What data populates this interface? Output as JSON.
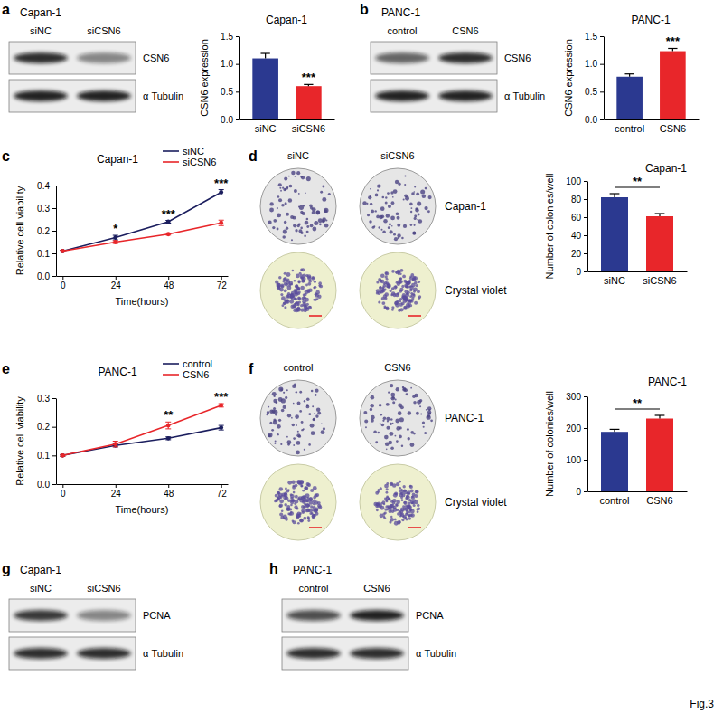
{
  "panel_letters": [
    "a",
    "b",
    "c",
    "d",
    "e",
    "f",
    "g",
    "h"
  ],
  "figure_label": "Fig.3",
  "blots": [
    {
      "title": "Capan-1",
      "lanes": [
        "siNC",
        "siCSN6"
      ],
      "rows": [
        {
          "label": "CSN6",
          "intensity": [
            0.85,
            0.45
          ]
        },
        {
          "label": "α Tubulin",
          "intensity": [
            0.9,
            0.9
          ]
        }
      ]
    },
    {
      "title": "PANC-1",
      "lanes": [
        "control",
        "CSN6"
      ],
      "rows": [
        {
          "label": "CSN6",
          "intensity": [
            0.6,
            0.85
          ]
        },
        {
          "label": "α Tubulin",
          "intensity": [
            0.9,
            0.9
          ]
        }
      ]
    },
    {
      "title": "Capan-1",
      "lanes": [
        "siNC",
        "siCSN6"
      ],
      "rows": [
        {
          "label": "PCNA",
          "intensity": [
            0.8,
            0.45
          ]
        },
        {
          "label": "α Tubulin",
          "intensity": [
            0.85,
            0.85
          ]
        }
      ]
    },
    {
      "title": "PANC-1",
      "lanes": [
        "control",
        "CSN6"
      ],
      "rows": [
        {
          "label": "PCNA",
          "intensity": [
            0.7,
            0.9
          ]
        },
        {
          "label": "α Tubulin",
          "intensity": [
            0.85,
            0.85
          ]
        }
      ]
    }
  ],
  "colony_images": [
    {
      "columns": [
        "siNC",
        "siCSN6"
      ],
      "rows": [
        "Capan-1",
        "Crystal violet"
      ]
    },
    {
      "columns": [
        "control",
        "CSN6"
      ],
      "rows": [
        "PANC-1",
        "Crystal violet"
      ]
    }
  ],
  "chart_data": [
    {
      "type": "bar",
      "title": "Capan-1",
      "y_label": "CSN6 expression",
      "categories": [
        "siNC",
        "siCSN6"
      ],
      "values": [
        1.1,
        0.6
      ],
      "errors": [
        0.09,
        0.03
      ],
      "colors": [
        "#2b3990",
        "#e8262a"
      ],
      "ylim": [
        0,
        1.5
      ],
      "yticks": [
        {
          "value": 0,
          "label": "0.0"
        },
        {
          "value": 0.5,
          "label": "0.5"
        },
        {
          "value": 1,
          "label": "1.0"
        },
        {
          "value": 1.5,
          "label": "1.5"
        }
      ],
      "annotations": [
        {
          "text": "***",
          "x": "siCSN6"
        }
      ]
    },
    {
      "type": "bar",
      "title": "PANC-1",
      "y_label": "CSN6 expression",
      "categories": [
        "control",
        "CSN6"
      ],
      "values": [
        0.77,
        1.23
      ],
      "errors": [
        0.05,
        0.05
      ],
      "colors": [
        "#2b3990",
        "#e8262a"
      ],
      "ylim": [
        0,
        1.5
      ],
      "yticks": [
        {
          "value": 0,
          "label": "0.0"
        },
        {
          "value": 0.5,
          "label": "0.5"
        },
        {
          "value": 1,
          "label": "1.0"
        },
        {
          "value": 1.5,
          "label": "1.5"
        }
      ],
      "annotations": [
        {
          "text": "***",
          "x": "CSN6"
        }
      ]
    },
    {
      "type": "line",
      "title": "Capan-1",
      "x_label": "Time(hours)",
      "y_label": "Relative cell viability",
      "x": [
        0,
        24,
        48,
        72
      ],
      "series": [
        {
          "name": "siNC",
          "color": "#1b1e5e",
          "marker": "circle",
          "values": [
            0.11,
            0.17,
            0.24,
            0.37
          ],
          "errors": [
            0.004,
            0.01,
            0.006,
            0.012
          ]
        },
        {
          "name": "siCSN6",
          "color": "#e8262a",
          "marker": "circle",
          "values": [
            0.11,
            0.15,
            0.185,
            0.235
          ],
          "errors": [
            0.004,
            0.006,
            0.004,
            0.012
          ]
        }
      ],
      "xlim": [
        -3,
        75
      ],
      "xticks": [
        0,
        24,
        48,
        72
      ],
      "ylim": [
        0,
        0.4
      ],
      "yticks": [
        {
          "value": 0,
          "label": "0.0"
        },
        {
          "value": 0.1,
          "label": "0.1"
        },
        {
          "value": 0.2,
          "label": "0.2"
        },
        {
          "value": 0.3,
          "label": "0.3"
        },
        {
          "value": 0.4,
          "label": "0.4"
        }
      ],
      "legend": "upper right",
      "annotations": [
        {
          "text": "*",
          "x": 24
        },
        {
          "text": "***",
          "x": 48
        },
        {
          "text": "***",
          "x": 72
        }
      ]
    },
    {
      "type": "bar",
      "title": "Capan-1",
      "y_label": "Number of colonies/well",
      "categories": [
        "siNC",
        "siCSN6"
      ],
      "values": [
        82,
        61
      ],
      "errors": [
        4,
        3
      ],
      "colors": [
        "#2b3990",
        "#e8262a"
      ],
      "ylim": [
        0,
        100
      ],
      "yticks": [
        0,
        20,
        40,
        60,
        80,
        100
      ],
      "annotations": [
        {
          "text": "**",
          "x": [
            "siNC",
            "siCSN6"
          ]
        }
      ]
    },
    {
      "type": "line",
      "title": "PANC-1",
      "x_label": "Time(hours)",
      "y_label": "Relative cell viability",
      "x": [
        0,
        24,
        48,
        72
      ],
      "series": [
        {
          "name": "control",
          "color": "#1b1e5e",
          "marker": "circle",
          "values": [
            0.1,
            0.135,
            0.16,
            0.197
          ],
          "errors": [
            0.003,
            0.005,
            0.005,
            0.008
          ]
        },
        {
          "name": "CSN6",
          "color": "#e8262a",
          "marker": "circle",
          "values": [
            0.1,
            0.14,
            0.205,
            0.275
          ],
          "errors": [
            0.003,
            0.01,
            0.012,
            0.006
          ]
        }
      ],
      "xlim": [
        -3,
        75
      ],
      "xticks": [
        0,
        24,
        48,
        72
      ],
      "ylim": [
        0,
        0.3
      ],
      "yticks": [
        {
          "value": 0,
          "label": "0.0"
        },
        {
          "value": 0.1,
          "label": "0.1"
        },
        {
          "value": 0.2,
          "label": "0.2"
        },
        {
          "value": 0.3,
          "label": "0.3"
        }
      ],
      "legend": "upper right",
      "annotations": [
        {
          "text": "**",
          "x": 48
        },
        {
          "text": "***",
          "x": 72
        }
      ]
    },
    {
      "type": "bar",
      "title": "PANC-1",
      "y_label": "Number of colonies/well",
      "categories": [
        "control",
        "CSN6"
      ],
      "values": [
        188,
        230
      ],
      "errors": [
        8,
        10
      ],
      "colors": [
        "#2b3990",
        "#e8262a"
      ],
      "ylim": [
        0,
        300
      ],
      "yticks": [
        0,
        100,
        200,
        300
      ],
      "annotations": [
        {
          "text": "**",
          "x": [
            "control",
            "CSN6"
          ]
        }
      ]
    }
  ]
}
